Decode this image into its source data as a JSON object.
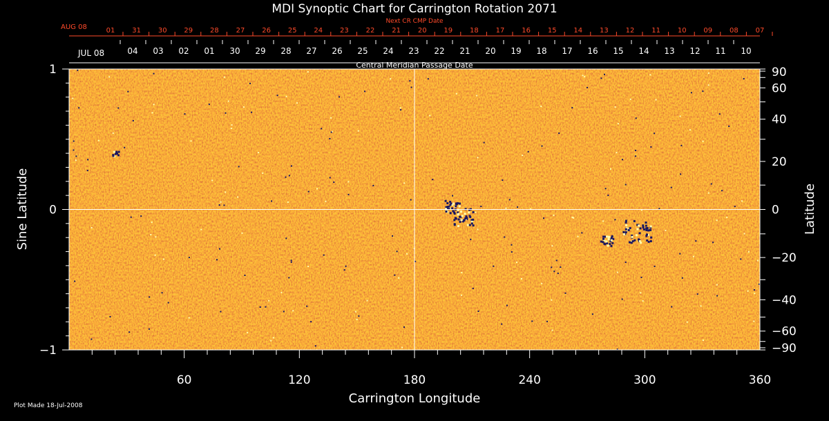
{
  "chart_data": {
    "type": "heatmap",
    "title": "MDI Synoptic Chart for Carrington Rotation 2071",
    "xlabel": "Carrington Longitude",
    "ylabel_left": "Sine Latitude",
    "ylabel_right": "Latitude",
    "xlim": [
      0,
      360
    ],
    "ylim": [
      -1,
      1
    ],
    "x_ticks": [
      60,
      120,
      180,
      240,
      300,
      360
    ],
    "y_ticks_left": [
      {
        "value": 1,
        "label": "1"
      },
      {
        "value": 0,
        "label": "0"
      },
      {
        "value": -1,
        "label": "−1"
      }
    ],
    "y_ticks_right": [
      {
        "value": 90,
        "label": "90"
      },
      {
        "value": 60,
        "label": "60"
      },
      {
        "value": 40,
        "label": "40"
      },
      {
        "value": 20,
        "label": "20"
      },
      {
        "value": 0,
        "label": "0"
      },
      {
        "value": -20,
        "label": "−20"
      },
      {
        "value": -40,
        "label": "−40"
      },
      {
        "value": -60,
        "label": "−60"
      },
      {
        "value": -90,
        "label": "−90"
      }
    ],
    "top_axis_cmp": {
      "label": "Central Meridian Passage Date",
      "start_label": "JUL 08",
      "dates": [
        "04",
        "03",
        "02",
        "01",
        "30",
        "29",
        "28",
        "27",
        "26",
        "25",
        "24",
        "23",
        "22",
        "21",
        "20",
        "19",
        "18",
        "17",
        "16",
        "15",
        "14",
        "13",
        "12",
        "11",
        "10"
      ]
    },
    "top_axis_next_cr": {
      "label": "Next CR CMP Date",
      "start_label": "AUG 08",
      "dates": [
        "01",
        "31",
        "30",
        "29",
        "28",
        "27",
        "26",
        "25",
        "24",
        "23",
        "22",
        "21",
        "20",
        "19",
        "18",
        "17",
        "16",
        "15",
        "14",
        "13",
        "12",
        "11",
        "10",
        "09",
        "08",
        "07"
      ]
    },
    "grid": false,
    "reference_lines": {
      "longitude": 180,
      "sine_latitude": 0
    },
    "colors": {
      "background": "#000000",
      "map_base": "#e8541c",
      "accent_red": "#ff4a2a",
      "negative_polarity": "#1a1660",
      "positive_polarity": "#ffffb0"
    },
    "footnote": "Plot Made 18-Jul-2008"
  }
}
